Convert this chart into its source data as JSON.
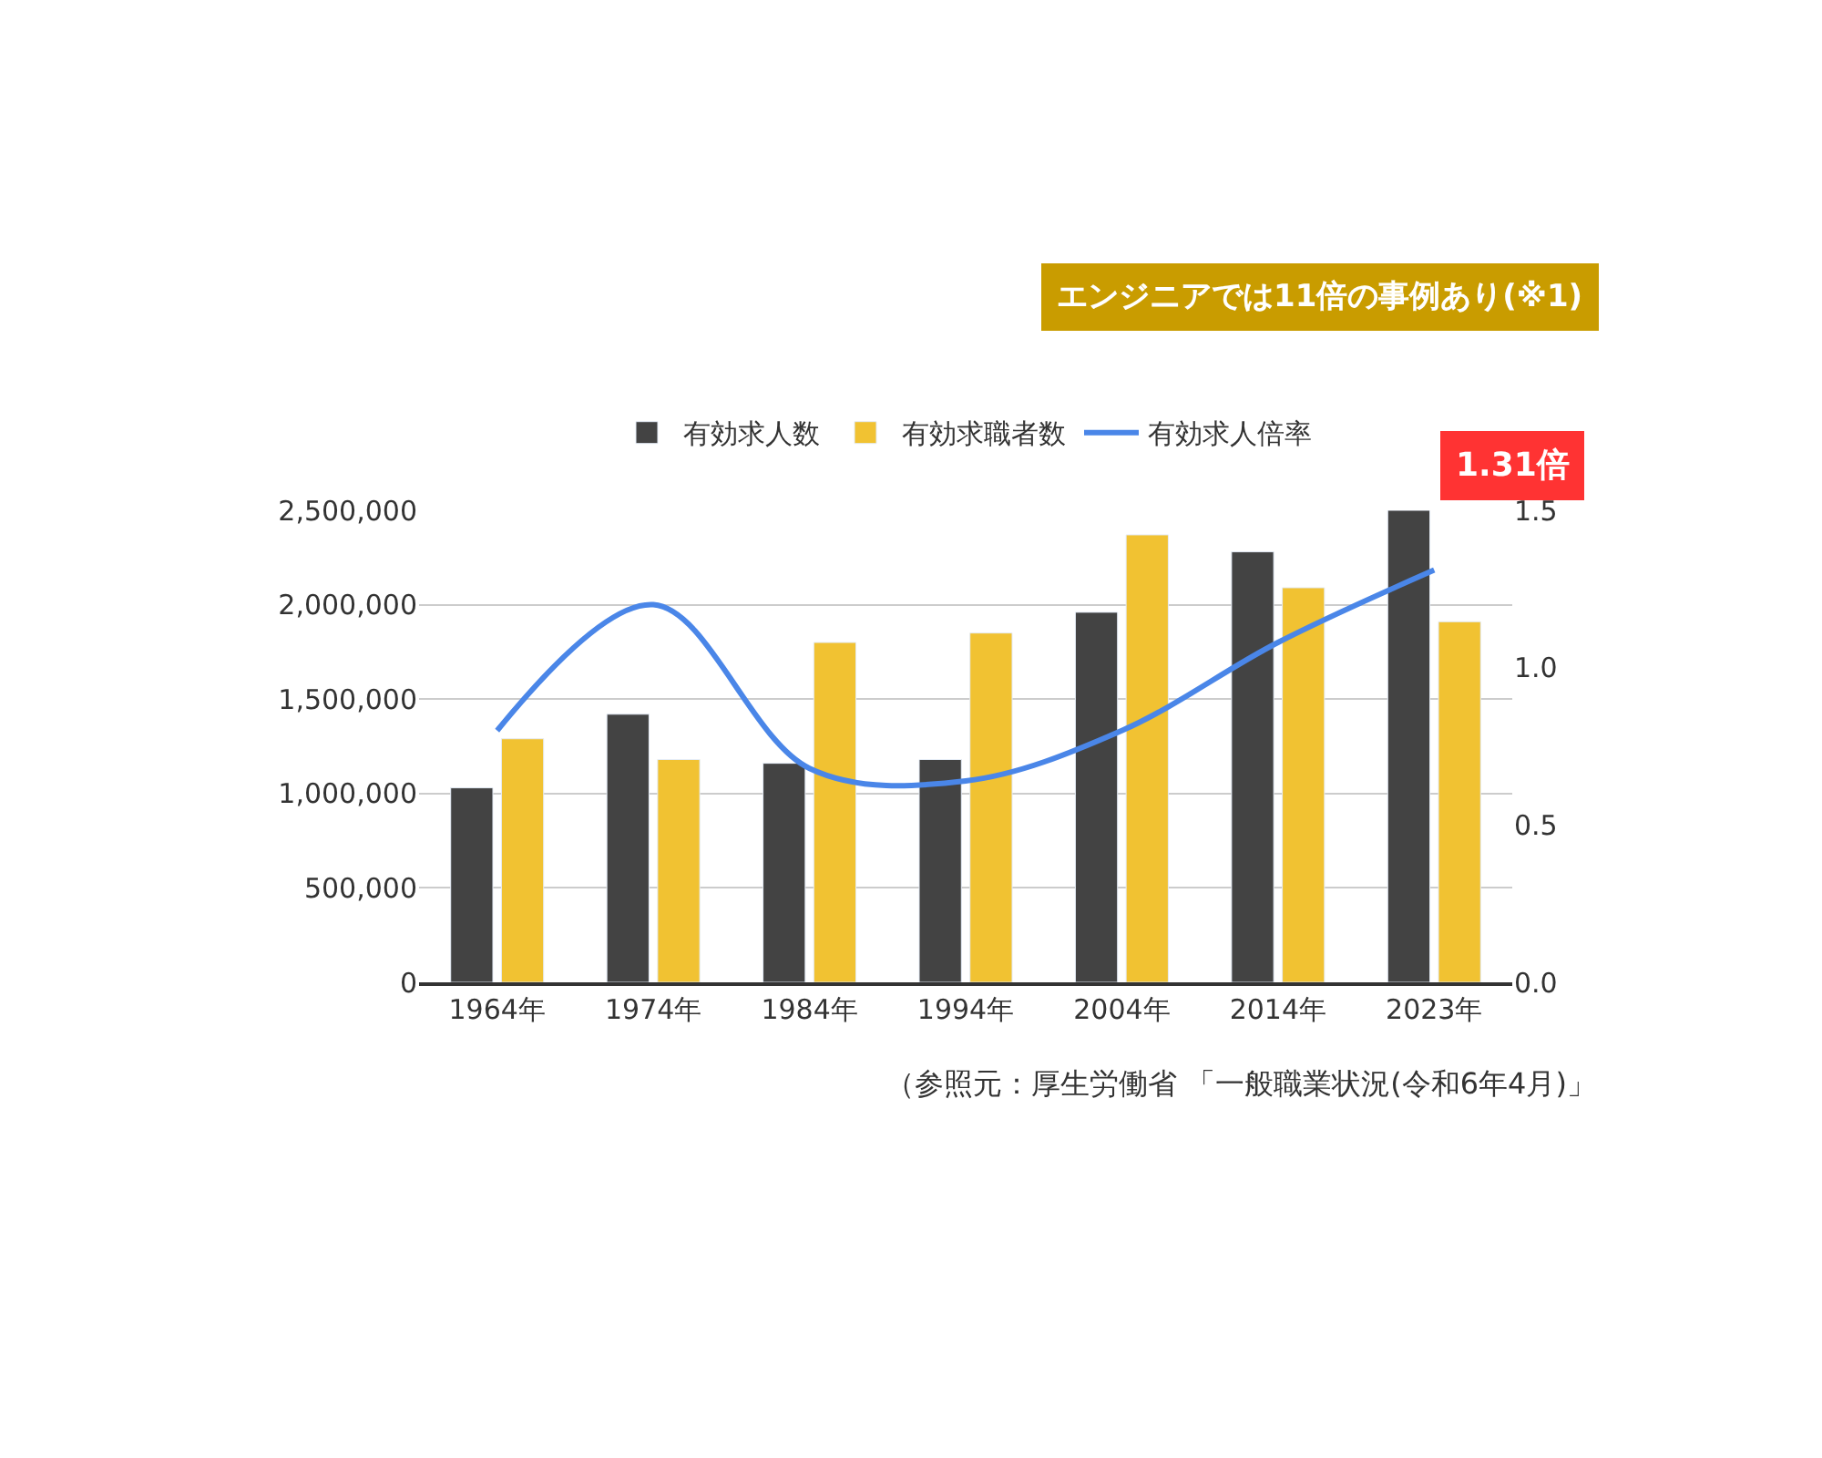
{
  "chart_data": {
    "type": "bar",
    "categories": [
      "1964年",
      "1974年",
      "1984年",
      "1994年",
      "2004年",
      "2014年",
      "2023年"
    ],
    "series": [
      {
        "name": "有効求人数",
        "color": "#434343",
        "values": [
          1030000,
          1420000,
          1160000,
          1180000,
          1960000,
          2280000,
          2500000
        ]
      },
      {
        "name": "有効求職者数",
        "color": "#f1c232",
        "values": [
          1290000,
          1180000,
          1800000,
          1850000,
          2370000,
          2090000,
          1910000
        ]
      },
      {
        "name": "有効求人倍率",
        "type": "line",
        "axis": "y2",
        "color": "#4a86e8",
        "values": [
          0.8,
          1.2,
          0.68,
          0.64,
          0.8,
          1.08,
          1.31
        ]
      }
    ],
    "ylim": [
      0,
      2500000
    ],
    "yticks": [
      0,
      {
        "value": 500000,
        "label": "500,000"
      },
      {
        "value": 1000000,
        "label": "1,000,000"
      },
      {
        "value": 1500000,
        "label": "1,500,000"
      },
      {
        "value": 2000000,
        "label": "2,000,000"
      },
      {
        "value": 2500000,
        "label": "2,500,000"
      }
    ],
    "y2lim": [
      0,
      1.5
    ],
    "y2ticks": [
      {
        "value": 0,
        "label": "0.0"
      },
      0.5,
      {
        "value": 1,
        "label": "1.0"
      },
      1.5
    ],
    "annotations": [
      "エンジニアでは11倍の事例あり(※1)",
      "1.31倍",
      "（参照元：厚生労働省 「一般職業状況(令和6年4月)」"
    ],
    "grid": "y",
    "legend": "top"
  }
}
